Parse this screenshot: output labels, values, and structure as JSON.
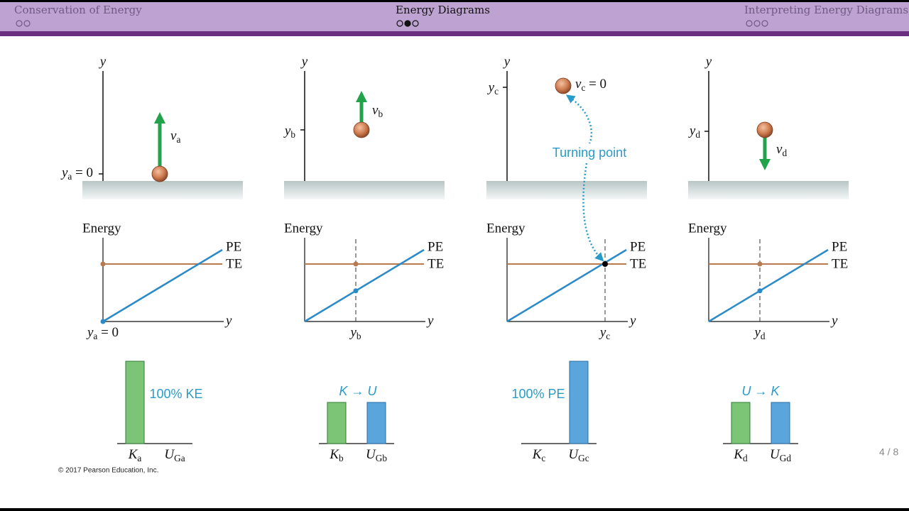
{
  "header": {
    "sections": [
      {
        "title": "Conservation of Energy"
      },
      {
        "title": "Energy Diagrams"
      },
      {
        "title": "Interpreting Energy Diagrams"
      }
    ]
  },
  "panels": [
    {
      "axis_label": "y",
      "height_label": {
        "symbol": "y",
        "sub": "a",
        "suffix": " = 0"
      },
      "velocity_label": {
        "symbol": "v",
        "sub": "a"
      },
      "energy_label": "Energy",
      "pe_label": "PE",
      "te_label": "TE",
      "graph_x_label": "y",
      "graph_position_label": {
        "symbol": "y",
        "sub": "a",
        "suffix": " = 0"
      },
      "bar_note": "100% KE",
      "bars": [
        {
          "symbol": "K",
          "sub": "a",
          "value": 100
        },
        {
          "symbol": "U",
          "sub": "Ga",
          "value": 0
        }
      ]
    },
    {
      "axis_label": "y",
      "height_label": {
        "symbol": "y",
        "sub": "b"
      },
      "velocity_label": {
        "symbol": "v",
        "sub": "b"
      },
      "energy_label": "Energy",
      "pe_label": "PE",
      "te_label": "TE",
      "graph_x_label": "y",
      "graph_position_label": {
        "symbol": "y",
        "sub": "b"
      },
      "bar_note": "K → U",
      "bars": [
        {
          "symbol": "K",
          "sub": "b",
          "value": 50
        },
        {
          "symbol": "U",
          "sub": "Gb",
          "value": 50
        }
      ]
    },
    {
      "axis_label": "y",
      "height_label": {
        "symbol": "y",
        "sub": "c"
      },
      "velocity_label": {
        "symbol": "v",
        "sub": "c",
        "suffix": " = 0"
      },
      "energy_label": "Energy",
      "pe_label": "PE",
      "te_label": "TE",
      "graph_x_label": "y",
      "graph_position_label": {
        "symbol": "y",
        "sub": "c"
      },
      "bar_note": "100% PE",
      "bars": [
        {
          "symbol": "K",
          "sub": "c",
          "value": 0
        },
        {
          "symbol": "U",
          "sub": "Gc",
          "value": 100
        }
      ]
    },
    {
      "axis_label": "y",
      "height_label": {
        "symbol": "y",
        "sub": "d"
      },
      "velocity_label": {
        "symbol": "v",
        "sub": "d"
      },
      "energy_label": "Energy",
      "pe_label": "PE",
      "te_label": "TE",
      "graph_x_label": "y",
      "graph_position_label": {
        "symbol": "y",
        "sub": "d"
      },
      "bar_note": "U → K",
      "bars": [
        {
          "symbol": "K",
          "sub": "d",
          "value": 50
        },
        {
          "symbol": "U",
          "sub": "Gd",
          "value": 50
        }
      ]
    }
  ],
  "turning_point": "Turning point",
  "copyright": "© 2017 Pearson Education, Inc.",
  "page_number": "4 / 8"
}
